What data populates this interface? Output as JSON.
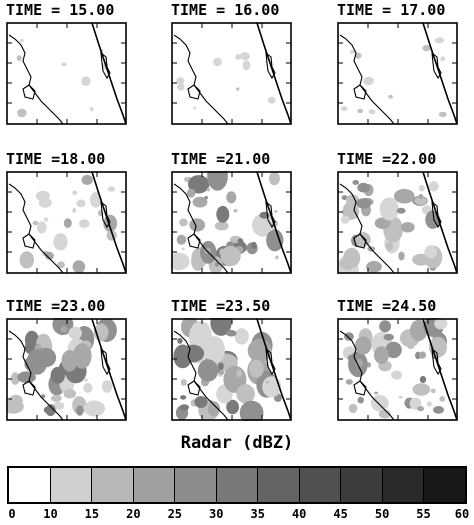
{
  "panels": [
    {
      "title": "TIME = 15.00",
      "intensity": 0.05
    },
    {
      "title": "TIME = 16.00",
      "intensity": 0.07
    },
    {
      "title": "TIME = 17.00",
      "intensity": 0.1
    },
    {
      "title": "TIME =18.00",
      "intensity": 0.25
    },
    {
      "title": "TIME =21.00",
      "intensity": 0.55
    },
    {
      "title": "TIME =22.00",
      "intensity": 0.5
    },
    {
      "title": "TIME =23.00",
      "intensity": 0.6
    },
    {
      "title": "TIME =23.50",
      "intensity": 0.65
    },
    {
      "title": "TIME =24.50",
      "intensity": 0.55
    }
  ],
  "colorbar": {
    "title": "Radar (dBZ)",
    "labels": [
      "0",
      "10",
      "15",
      "20",
      "25",
      "30",
      "35",
      "40",
      "45",
      "50",
      "55",
      "60"
    ],
    "colors": [
      "#ffffff",
      "#d0d0d0",
      "#b8b8b8",
      "#a0a0a0",
      "#8c8c8c",
      "#787878",
      "#646464",
      "#505050",
      "#3c3c3c",
      "#2a2a2a",
      "#181818"
    ]
  }
}
